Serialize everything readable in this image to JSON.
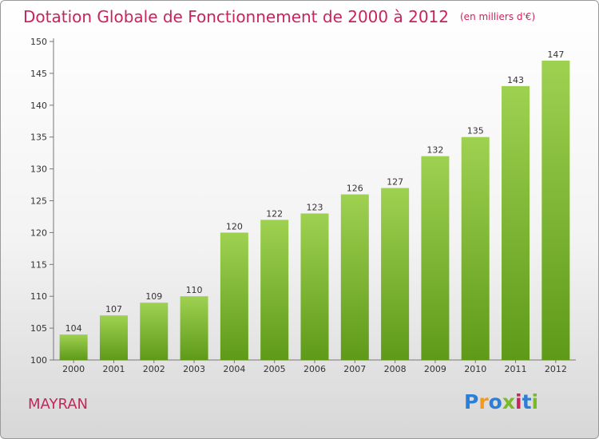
{
  "title": "Dotation Globale de Fonctionnement de 2000 à 2012",
  "subtitle": "(en milliers d'€)",
  "commune": "MAYRAN",
  "logo": {
    "text": "Proxiti",
    "letters": [
      {
        "ch": "P",
        "color": "#2b7fd6"
      },
      {
        "ch": "r",
        "color": "#f39a1d"
      },
      {
        "ch": "o",
        "color": "#2b7fd6"
      },
      {
        "ch": "x",
        "color": "#7ab928"
      },
      {
        "ch": "i",
        "color": "#c8245b"
      },
      {
        "ch": "t",
        "color": "#2b7fd6"
      },
      {
        "ch": "i",
        "color": "#7ab928"
      }
    ]
  },
  "colors": {
    "title": "#c8245b",
    "bar_top": "#9fd151",
    "bar_bottom": "#5e9a18",
    "axis": "#777777",
    "grid_tick": "#777777"
  },
  "chart_data": {
    "type": "bar",
    "categories": [
      "2000",
      "2001",
      "2002",
      "2003",
      "2004",
      "2005",
      "2006",
      "2007",
      "2008",
      "2009",
      "2010",
      "2011",
      "2012"
    ],
    "values": [
      104,
      107,
      109,
      110,
      120,
      122,
      123,
      126,
      127,
      132,
      135,
      143,
      147
    ],
    "ylim": [
      100,
      150
    ],
    "yticks": [
      100,
      105,
      110,
      115,
      120,
      125,
      130,
      135,
      140,
      145,
      150
    ],
    "grid": false,
    "data_labels": true
  }
}
